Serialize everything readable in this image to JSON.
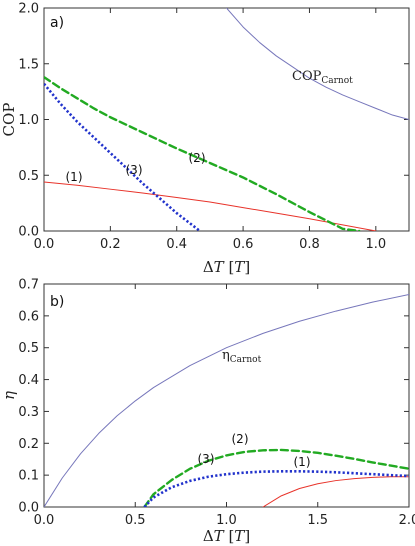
{
  "chart_data": [
    {
      "type": "line",
      "panel_label": "a)",
      "xlabel_symbol": "ΔT",
      "xlabel_unit": "[T]",
      "ylabel": "COP",
      "xlim": [
        0,
        1.1
      ],
      "ylim": [
        0,
        2.0
      ],
      "x_ticks": [
        "0.0",
        "0.2",
        "0.4",
        "0.6",
        "0.8",
        "1.0"
      ],
      "y_ticks": [
        "0.0",
        "0.5",
        "1.0",
        "1.5",
        "2.0"
      ],
      "x_tick_values": [
        0,
        0.2,
        0.4,
        0.6,
        0.8,
        1.0
      ],
      "y_tick_values": [
        0,
        0.5,
        1.0,
        1.5,
        2.0
      ],
      "series": [
        {
          "name": "COP_Carnot",
          "label_main": "COP",
          "label_sub": "Carnot",
          "color": "#7777bb",
          "style": "solid",
          "x": [
            0.55,
            0.6,
            0.65,
            0.7,
            0.75,
            0.8,
            0.85,
            0.9,
            0.95,
            1.0,
            1.05,
            1.1
          ],
          "y": [
            2.0,
            1.83,
            1.69,
            1.57,
            1.47,
            1.37,
            1.29,
            1.22,
            1.16,
            1.1,
            1.04,
            1.0
          ]
        },
        {
          "name": "(1)",
          "color": "#e8332a",
          "style": "solid",
          "x": [
            0.0,
            0.1,
            0.2,
            0.3,
            0.4,
            0.5,
            0.6,
            0.7,
            0.8,
            0.9,
            1.0
          ],
          "y": [
            0.44,
            0.41,
            0.375,
            0.34,
            0.3,
            0.26,
            0.21,
            0.16,
            0.11,
            0.055,
            0.0
          ]
        },
        {
          "name": "(2)",
          "color": "#22aa22",
          "style": "dashed",
          "x": [
            0.0,
            0.05,
            0.1,
            0.15,
            0.2,
            0.3,
            0.4,
            0.5,
            0.6,
            0.7,
            0.8,
            0.9,
            0.95
          ],
          "y": [
            1.38,
            1.28,
            1.19,
            1.1,
            1.02,
            0.88,
            0.74,
            0.61,
            0.48,
            0.33,
            0.17,
            0.02,
            0.0
          ]
        },
        {
          "name": "(3)",
          "color": "#2233cc",
          "style": "dotted",
          "x": [
            0.0,
            0.05,
            0.1,
            0.15,
            0.2,
            0.25,
            0.3,
            0.35,
            0.4,
            0.47
          ],
          "y": [
            1.32,
            1.14,
            0.98,
            0.84,
            0.7,
            0.56,
            0.42,
            0.29,
            0.16,
            0.0
          ]
        }
      ]
    },
    {
      "type": "line",
      "panel_label": "b)",
      "xlabel_symbol": "ΔT",
      "xlabel_unit": "[T]",
      "ylabel": "η",
      "xlim": [
        0,
        2.0
      ],
      "ylim": [
        0,
        0.7
      ],
      "x_ticks": [
        "0.0",
        "0.5",
        "1.0",
        "1.5",
        "2.0"
      ],
      "y_ticks": [
        "0.0",
        "0.1",
        "0.2",
        "0.3",
        "0.4",
        "0.5",
        "0.6",
        "0.7"
      ],
      "x_tick_values": [
        0,
        0.5,
        1.0,
        1.5,
        2.0
      ],
      "y_tick_values": [
        0,
        0.1,
        0.2,
        0.3,
        0.4,
        0.5,
        0.6,
        0.7
      ],
      "series": [
        {
          "name": "η_Carnot",
          "label_main": "η",
          "label_sub": "Carnot",
          "color": "#7777bb",
          "style": "solid",
          "x": [
            0.0,
            0.1,
            0.2,
            0.3,
            0.4,
            0.5,
            0.6,
            0.8,
            1.0,
            1.2,
            1.4,
            1.6,
            1.8,
            2.0
          ],
          "y": [
            0.0,
            0.091,
            0.167,
            0.231,
            0.286,
            0.333,
            0.375,
            0.444,
            0.5,
            0.545,
            0.583,
            0.615,
            0.643,
            0.667
          ]
        },
        {
          "name": "(1)",
          "color": "#e8332a",
          "style": "solid",
          "x": [
            1.2,
            1.3,
            1.4,
            1.5,
            1.6,
            1.7,
            1.8,
            1.9,
            2.0
          ],
          "y": [
            0.0,
            0.035,
            0.058,
            0.073,
            0.083,
            0.089,
            0.093,
            0.095,
            0.095
          ]
        },
        {
          "name": "(2)",
          "color": "#22aa22",
          "style": "dashed",
          "x": [
            0.55,
            0.6,
            0.7,
            0.8,
            0.9,
            1.0,
            1.1,
            1.2,
            1.3,
            1.4,
            1.5,
            1.6,
            1.7,
            1.8,
            1.9,
            2.0
          ],
          "y": [
            0.0,
            0.04,
            0.085,
            0.12,
            0.145,
            0.162,
            0.173,
            0.178,
            0.179,
            0.176,
            0.17,
            0.161,
            0.151,
            0.14,
            0.13,
            0.12
          ]
        },
        {
          "name": "(3)",
          "color": "#2233cc",
          "style": "dotted",
          "x": [
            0.55,
            0.6,
            0.7,
            0.8,
            0.9,
            1.0,
            1.1,
            1.2,
            1.3,
            1.4,
            1.5,
            1.6,
            1.7,
            1.8,
            1.9,
            2.0
          ],
          "y": [
            0.0,
            0.03,
            0.062,
            0.082,
            0.095,
            0.103,
            0.108,
            0.111,
            0.112,
            0.112,
            0.111,
            0.109,
            0.106,
            0.103,
            0.1,
            0.097
          ]
        }
      ]
    }
  ]
}
